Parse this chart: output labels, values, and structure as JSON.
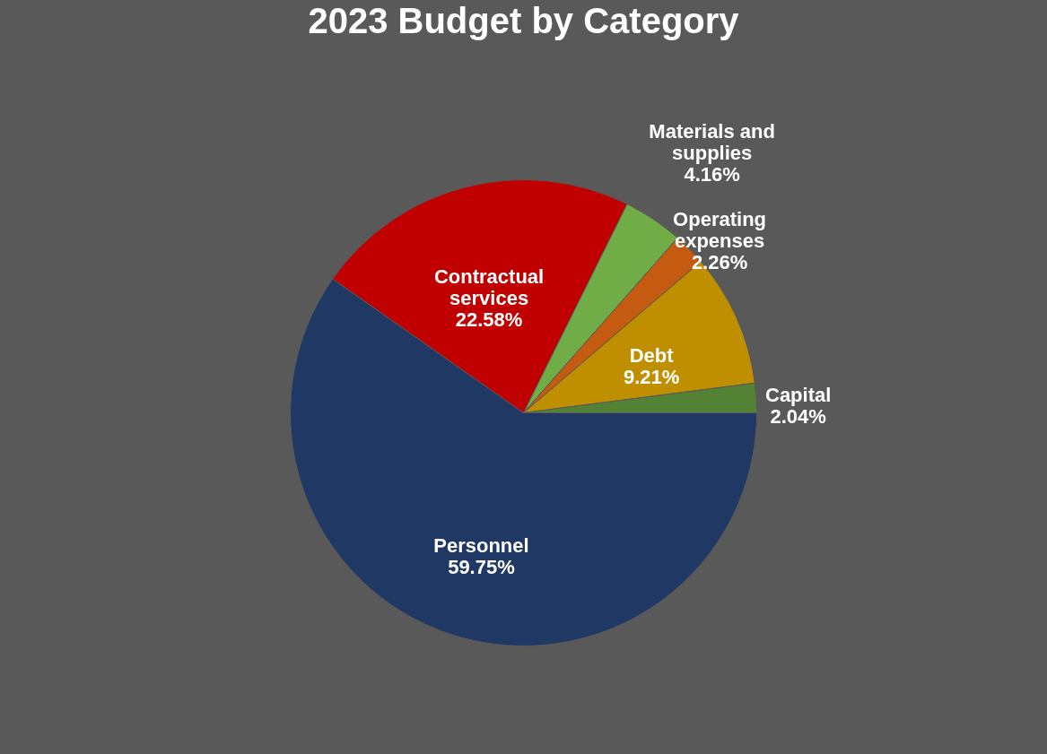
{
  "chart_data": {
    "type": "pie",
    "title": "2023 Budget by Category",
    "categories": [
      "Personnel",
      "Contractual services",
      "Materials and supplies",
      "Operating expenses",
      "Debt",
      "Capital"
    ],
    "values": [
      59.75,
      22.58,
      4.16,
      2.26,
      9.21,
      2.04
    ],
    "value_labels": [
      "59.75%",
      "22.58%",
      "4.16%",
      "2.26%",
      "9.21%",
      "2.04%"
    ],
    "colors": [
      "#1f3864",
      "#c00000",
      "#70ad47",
      "#c55a11",
      "#bf8f00",
      "#548235"
    ],
    "legend": false
  }
}
